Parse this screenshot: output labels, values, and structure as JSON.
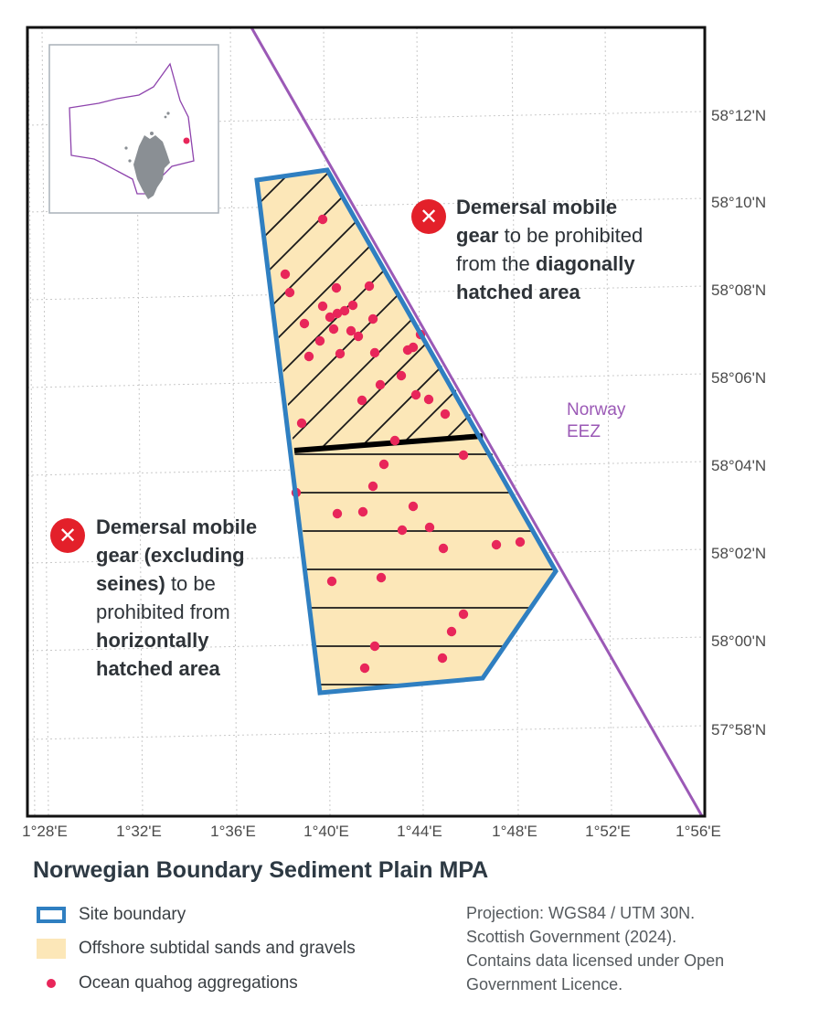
{
  "map": {
    "title": "Norwegian Boundary Sediment Plain MPA",
    "latitude_labels": [
      "58°12'N",
      "58°10'N",
      "58°08'N",
      "58°06'N",
      "58°04'N",
      "58°02'N",
      "58°00'N",
      "57°58'N"
    ],
    "longitude_labels": [
      "1°28'E",
      "1°32'E",
      "1°36'E",
      "1°40'E",
      "1°44'E",
      "1°48'E",
      "1°52'E",
      "1°56'E"
    ],
    "boundary_label_line1": "Norway",
    "boundary_label_line2": "EEZ",
    "colors": {
      "site_boundary": "#2f7fc1",
      "sands_gravels": "#fce7b8",
      "quahog": "#e8265a",
      "norway_eez": "#9b59b6",
      "prohibited_icon": "#e3202a"
    }
  },
  "annotations": {
    "diagonal": {
      "icon": "close-icon",
      "part1_bold": "Demersal mobile",
      "part2_bold": "gear",
      "part3": " to be prohibited",
      "part4": "from the ",
      "part5_bold": "diagonally",
      "part6_bold": "hatched area"
    },
    "horizontal": {
      "icon": "close-icon",
      "part1_bold": "Demersal mobile",
      "part2_bold": "gear (excluding",
      "part3_bold": "seines)",
      "part4": " to be",
      "part5": "prohibited from",
      "part6_bold": "horizontally",
      "part7_bold": "hatched area"
    }
  },
  "legend": {
    "site_boundary": "Site boundary",
    "sands_gravels": "Offshore subtidal sands and gravels",
    "quahog": "Ocean quahog aggregations"
  },
  "notes": "Projection: WGS84 / UTM 30N. Scottish Government (2024). Contains data licensed under Open Government Licence."
}
